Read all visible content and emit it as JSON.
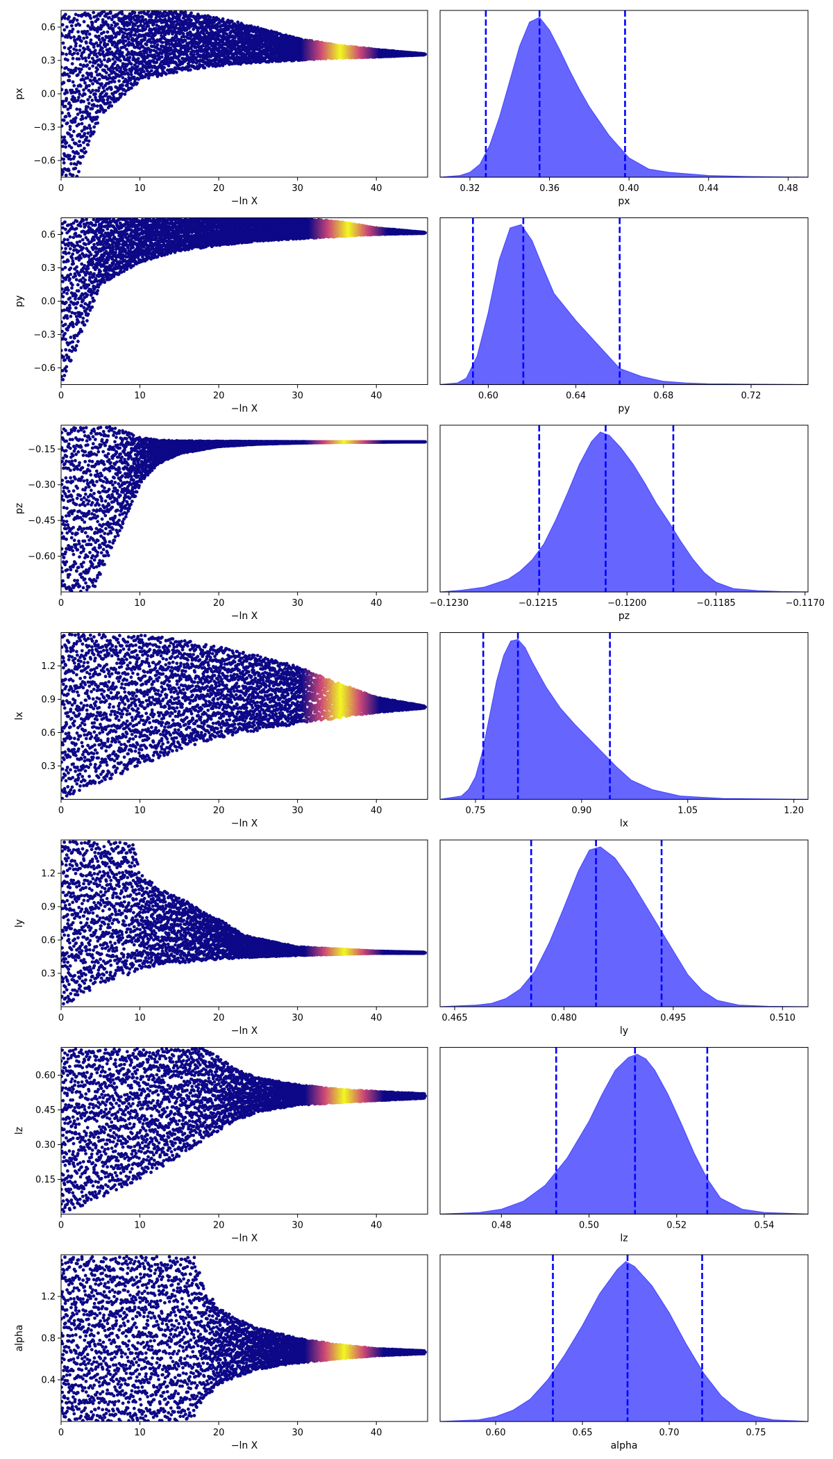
{
  "colors": {
    "scatter_low": "#0d0887",
    "scatter_mid": "#cc4778",
    "scatter_high": "#f0f921",
    "kde_fill": "#6666ff",
    "kde_edge": "#4b4bff",
    "quantile_line": "#0000ff"
  },
  "chart_data": [
    {
      "type": "scatter",
      "panel": "trace-px",
      "ylabel": "px",
      "xlabel": "−ln X",
      "xlim": [
        0,
        46.5
      ],
      "ylim": [
        -0.75,
        0.75
      ],
      "xticks": [
        0,
        10,
        20,
        30,
        40
      ],
      "xtick_labels": [
        "0",
        "10",
        "20",
        "30",
        "40"
      ],
      "yticks": [
        -0.6,
        -0.3,
        0.0,
        0.3,
        0.6
      ],
      "ytick_labels": [
        "−0.6",
        "−0.3",
        "0.0",
        "0.3",
        "0.6"
      ],
      "envelope": {
        "x": [
          0,
          2,
          5,
          10,
          15,
          20,
          25,
          30,
          35,
          40,
          46
        ],
        "upper": [
          0.75,
          0.75,
          0.75,
          0.75,
          0.75,
          0.69,
          0.6,
          0.5,
          0.44,
          0.4,
          0.36
        ],
        "lower": [
          -0.75,
          -0.75,
          -0.2,
          0.12,
          0.2,
          0.25,
          0.28,
          0.3,
          0.32,
          0.33,
          0.35
        ]
      },
      "peak_x": 35.5
    },
    {
      "type": "area",
      "panel": "posterior-px",
      "xlabel": "px",
      "xlim": [
        0.305,
        0.49
      ],
      "xticks": [
        0.32,
        0.36,
        0.4,
        0.44,
        0.48
      ],
      "xtick_labels": [
        "0.32",
        "0.36",
        "0.40",
        "0.44",
        "0.48"
      ],
      "x": [
        0.305,
        0.315,
        0.32,
        0.325,
        0.33,
        0.335,
        0.34,
        0.345,
        0.35,
        0.355,
        0.36,
        0.365,
        0.37,
        0.375,
        0.38,
        0.39,
        0.4,
        0.41,
        0.42,
        0.44,
        0.46,
        0.49
      ],
      "density": [
        0.0,
        0.01,
        0.03,
        0.08,
        0.2,
        0.38,
        0.6,
        0.82,
        0.97,
        1.0,
        0.92,
        0.8,
        0.67,
        0.55,
        0.44,
        0.26,
        0.12,
        0.05,
        0.03,
        0.01,
        0.004,
        0.0
      ],
      "quantiles": [
        0.328,
        0.355,
        0.398
      ]
    },
    {
      "type": "scatter",
      "panel": "trace-py",
      "ylabel": "py",
      "xlabel": "−ln X",
      "xlim": [
        0,
        46.5
      ],
      "ylim": [
        -0.75,
        0.75
      ],
      "xticks": [
        0,
        10,
        20,
        30,
        40
      ],
      "xtick_labels": [
        "0",
        "10",
        "20",
        "30",
        "40"
      ],
      "yticks": [
        -0.6,
        -0.3,
        0.0,
        0.3,
        0.6
      ],
      "ytick_labels": [
        "−0.6",
        "−0.3",
        "0.0",
        "0.3",
        "0.6"
      ],
      "envelope": {
        "x": [
          0,
          2,
          5,
          10,
          15,
          20,
          25,
          30,
          35,
          40,
          46
        ],
        "upper": [
          0.75,
          0.75,
          0.75,
          0.75,
          0.75,
          0.75,
          0.75,
          0.75,
          0.72,
          0.66,
          0.62
        ],
        "lower": [
          -0.75,
          -0.4,
          0.15,
          0.35,
          0.45,
          0.5,
          0.54,
          0.56,
          0.58,
          0.6,
          0.61
        ]
      },
      "peak_x": 36.5
    },
    {
      "type": "area",
      "panel": "posterior-py",
      "xlabel": "py",
      "xlim": [
        0.578,
        0.746
      ],
      "xticks": [
        0.6,
        0.64,
        0.68,
        0.72
      ],
      "xtick_labels": [
        "0.60",
        "0.64",
        "0.68",
        "0.72"
      ],
      "x": [
        0.578,
        0.586,
        0.59,
        0.595,
        0.6,
        0.605,
        0.61,
        0.615,
        0.62,
        0.625,
        0.63,
        0.64,
        0.65,
        0.66,
        0.67,
        0.68,
        0.69,
        0.7,
        0.72,
        0.746
      ],
      "density": [
        0.0,
        0.01,
        0.04,
        0.18,
        0.45,
        0.78,
        0.98,
        1.0,
        0.9,
        0.73,
        0.57,
        0.4,
        0.25,
        0.1,
        0.05,
        0.02,
        0.01,
        0.005,
        0.002,
        0.0
      ],
      "quantiles": [
        0.593,
        0.616,
        0.66
      ]
    },
    {
      "type": "scatter",
      "panel": "trace-pz",
      "ylabel": "pz",
      "xlabel": "−ln X",
      "xlim": [
        0,
        46.5
      ],
      "ylim": [
        -0.75,
        -0.05
      ],
      "xticks": [
        0,
        10,
        20,
        30,
        40
      ],
      "xtick_labels": [
        "0",
        "10",
        "20",
        "30",
        "40"
      ],
      "yticks": [
        -0.6,
        -0.45,
        -0.3,
        -0.15
      ],
      "ytick_labels": [
        "−0.60",
        "−0.45",
        "−0.30",
        "−0.15"
      ],
      "envelope": {
        "x": [
          0,
          2,
          4,
          6,
          8,
          10,
          12,
          15,
          20,
          25,
          30,
          35,
          40,
          46
        ],
        "upper": [
          -0.05,
          -0.05,
          -0.05,
          -0.05,
          -0.07,
          -0.1,
          -0.11,
          -0.115,
          -0.117,
          -0.118,
          -0.119,
          -0.12,
          -0.12,
          -0.12
        ],
        "lower": [
          -0.75,
          -0.75,
          -0.75,
          -0.6,
          -0.45,
          -0.3,
          -0.22,
          -0.17,
          -0.14,
          -0.13,
          -0.125,
          -0.122,
          -0.121,
          -0.12
        ]
      },
      "peak_x": 36
    },
    {
      "type": "area",
      "panel": "posterior-pz",
      "xlabel": "pz",
      "xlim": [
        -0.12315,
        -0.11695
      ],
      "xticks": [
        -0.123,
        -0.1215,
        -0.12,
        -0.1185,
        -0.117
      ],
      "xtick_labels": [
        "−0.1230",
        "−0.1215",
        "−0.1200",
        "−0.1185",
        "−0.1170"
      ],
      "x": [
        -0.12315,
        -0.1228,
        -0.1224,
        -0.122,
        -0.1218,
        -0.1216,
        -0.1214,
        -0.1212,
        -0.121,
        -0.1208,
        -0.1206,
        -0.12045,
        -0.1203,
        -0.1201,
        -0.1199,
        -0.1197,
        -0.1195,
        -0.1193,
        -0.1191,
        -0.1189,
        -0.1187,
        -0.1185,
        -0.1182,
        -0.1178,
        -0.1174,
        -0.11695
      ],
      "density": [
        0.0,
        0.01,
        0.03,
        0.08,
        0.13,
        0.2,
        0.3,
        0.45,
        0.62,
        0.8,
        0.94,
        1.0,
        0.98,
        0.9,
        0.8,
        0.68,
        0.55,
        0.44,
        0.32,
        0.21,
        0.12,
        0.06,
        0.02,
        0.008,
        0.002,
        0.0
      ],
      "quantiles": [
        -0.12148,
        -0.12036,
        -0.11922
      ]
    },
    {
      "type": "scatter",
      "panel": "trace-lx",
      "ylabel": "lx",
      "xlabel": "−ln X",
      "xlim": [
        0,
        46.5
      ],
      "ylim": [
        0.0,
        1.5
      ],
      "xticks": [
        0,
        10,
        20,
        30,
        40
      ],
      "xtick_labels": [
        "0",
        "10",
        "20",
        "30",
        "40"
      ],
      "yticks": [
        0.3,
        0.6,
        0.9,
        1.2
      ],
      "ytick_labels": [
        "0.3",
        "0.6",
        "0.9",
        "1.2"
      ],
      "envelope": {
        "x": [
          0,
          5,
          10,
          15,
          20,
          25,
          30,
          35,
          40,
          46
        ],
        "upper": [
          1.5,
          1.5,
          1.5,
          1.45,
          1.38,
          1.3,
          1.2,
          1.05,
          0.92,
          0.84
        ],
        "lower": [
          0.0,
          0.15,
          0.3,
          0.45,
          0.55,
          0.62,
          0.68,
          0.73,
          0.78,
          0.82
        ]
      },
      "peak_x": 35.5
    },
    {
      "type": "area",
      "panel": "posterior-lx",
      "xlabel": "lx",
      "xlim": [
        0.7,
        1.22
      ],
      "xticks": [
        0.75,
        0.9,
        1.05,
        1.2
      ],
      "xtick_labels": [
        "0.75",
        "0.90",
        "1.05",
        "1.20"
      ],
      "x": [
        0.7,
        0.73,
        0.74,
        0.75,
        0.76,
        0.77,
        0.78,
        0.79,
        0.8,
        0.81,
        0.82,
        0.83,
        0.85,
        0.87,
        0.89,
        0.91,
        0.93,
        0.95,
        0.97,
        1.0,
        1.04,
        1.1,
        1.22
      ],
      "density": [
        0.0,
        0.02,
        0.06,
        0.14,
        0.3,
        0.52,
        0.74,
        0.9,
        0.99,
        1.0,
        0.95,
        0.86,
        0.7,
        0.57,
        0.47,
        0.38,
        0.29,
        0.2,
        0.12,
        0.06,
        0.02,
        0.005,
        0.0
      ],
      "quantiles": [
        0.761,
        0.81,
        0.94
      ]
    },
    {
      "type": "scatter",
      "panel": "trace-ly",
      "ylabel": "ly",
      "xlabel": "−ln X",
      "xlim": [
        0,
        46.5
      ],
      "ylim": [
        0.0,
        1.5
      ],
      "xticks": [
        0,
        10,
        20,
        30,
        40
      ],
      "xtick_labels": [
        "0",
        "10",
        "20",
        "30",
        "40"
      ],
      "yticks": [
        0.3,
        0.6,
        0.9,
        1.2
      ],
      "ytick_labels": [
        "0.3",
        "0.6",
        "0.9",
        "1.2"
      ],
      "envelope": {
        "x": [
          0,
          5,
          9,
          10,
          13,
          16,
          19,
          21,
          23,
          26,
          30,
          35,
          40,
          46
        ],
        "upper": [
          1.5,
          1.5,
          1.5,
          1.2,
          1.05,
          0.95,
          0.82,
          0.75,
          0.65,
          0.6,
          0.54,
          0.52,
          0.5,
          0.49
        ],
        "lower": [
          0.0,
          0.2,
          0.3,
          0.34,
          0.38,
          0.4,
          0.42,
          0.43,
          0.44,
          0.45,
          0.46,
          0.47,
          0.48,
          0.48
        ]
      },
      "peak_x": 36
    },
    {
      "type": "area",
      "panel": "posterior-ly",
      "xlabel": "ly",
      "xlim": [
        0.463,
        0.5135
      ],
      "xticks": [
        0.465,
        0.48,
        0.495,
        0.51
      ],
      "xtick_labels": [
        "0.465",
        "0.480",
        "0.495",
        "0.510"
      ],
      "x": [
        0.463,
        0.468,
        0.47,
        0.472,
        0.474,
        0.476,
        0.478,
        0.48,
        0.482,
        0.4835,
        0.485,
        0.487,
        0.489,
        0.491,
        0.493,
        0.495,
        0.497,
        0.499,
        0.501,
        0.504,
        0.508,
        0.5135
      ],
      "density": [
        0.0,
        0.01,
        0.02,
        0.05,
        0.11,
        0.22,
        0.4,
        0.62,
        0.85,
        0.98,
        1.0,
        0.93,
        0.8,
        0.65,
        0.5,
        0.35,
        0.2,
        0.1,
        0.04,
        0.01,
        0.002,
        0.0
      ],
      "quantiles": [
        0.4755,
        0.4844,
        0.4934
      ]
    },
    {
      "type": "scatter",
      "panel": "trace-lz",
      "ylabel": "lz",
      "xlabel": "−ln X",
      "xlim": [
        0,
        46.5
      ],
      "ylim": [
        0.0,
        0.72
      ],
      "xticks": [
        0,
        10,
        20,
        30,
        40
      ],
      "xtick_labels": [
        "0",
        "10",
        "20",
        "30",
        "40"
      ],
      "yticks": [
        0.15,
        0.3,
        0.45,
        0.6
      ],
      "ytick_labels": [
        "0.15",
        "0.30",
        "0.45",
        "0.60"
      ],
      "envelope": {
        "x": [
          0,
          5,
          10,
          15,
          18,
          20,
          22,
          25,
          30,
          35,
          40,
          46
        ],
        "upper": [
          0.72,
          0.72,
          0.72,
          0.72,
          0.72,
          0.68,
          0.63,
          0.59,
          0.56,
          0.54,
          0.53,
          0.52
        ],
        "lower": [
          0.0,
          0.07,
          0.15,
          0.25,
          0.32,
          0.36,
          0.4,
          0.44,
          0.47,
          0.48,
          0.49,
          0.5
        ]
      },
      "peak_x": 36
    },
    {
      "type": "area",
      "panel": "posterior-lz",
      "xlabel": "lz",
      "xlim": [
        0.466,
        0.55
      ],
      "xticks": [
        0.48,
        0.5,
        0.52,
        0.54
      ],
      "xtick_labels": [
        "0.48",
        "0.50",
        "0.52",
        "0.54"
      ],
      "x": [
        0.466,
        0.475,
        0.48,
        0.485,
        0.49,
        0.495,
        0.5,
        0.503,
        0.506,
        0.509,
        0.511,
        0.513,
        0.515,
        0.518,
        0.521,
        0.524,
        0.527,
        0.53,
        0.535,
        0.54,
        0.55
      ],
      "density": [
        0.0,
        0.01,
        0.03,
        0.08,
        0.18,
        0.35,
        0.58,
        0.75,
        0.9,
        0.98,
        1.0,
        0.97,
        0.9,
        0.75,
        0.57,
        0.38,
        0.22,
        0.1,
        0.03,
        0.01,
        0.0
      ],
      "quantiles": [
        0.4925,
        0.5105,
        0.527
      ]
    },
    {
      "type": "scatter",
      "panel": "trace-alpha",
      "ylabel": "alpha",
      "xlabel": "−ln X",
      "xlim": [
        0,
        46.5
      ],
      "ylim": [
        0.0,
        1.6
      ],
      "xticks": [
        0,
        10,
        20,
        30,
        40
      ],
      "xtick_labels": [
        "0",
        "10",
        "20",
        "30",
        "40"
      ],
      "yticks": [
        0.4,
        0.8,
        1.2
      ],
      "ytick_labels": [
        "0.4",
        "0.8",
        "1.2"
      ],
      "envelope": {
        "x": [
          0,
          5,
          10,
          15,
          17,
          18,
          20,
          22,
          25,
          30,
          35,
          40,
          46
        ],
        "upper": [
          1.6,
          1.6,
          1.6,
          1.6,
          1.6,
          1.3,
          1.1,
          1.0,
          0.9,
          0.8,
          0.74,
          0.7,
          0.68
        ],
        "lower": [
          0.0,
          0.0,
          0.0,
          0.0,
          0.05,
          0.2,
          0.35,
          0.42,
          0.5,
          0.56,
          0.6,
          0.63,
          0.65
        ]
      },
      "peak_x": 36
    },
    {
      "type": "area",
      "panel": "posterior-alpha",
      "xlabel": "alpha",
      "xlim": [
        0.568,
        0.78
      ],
      "xticks": [
        0.6,
        0.65,
        0.7,
        0.75
      ],
      "xtick_labels": [
        "0.60",
        "0.65",
        "0.70",
        "0.75"
      ],
      "x": [
        0.568,
        0.59,
        0.6,
        0.61,
        0.62,
        0.63,
        0.64,
        0.65,
        0.66,
        0.67,
        0.675,
        0.68,
        0.69,
        0.7,
        0.71,
        0.72,
        0.73,
        0.74,
        0.75,
        0.76,
        0.78
      ],
      "density": [
        0.0,
        0.01,
        0.03,
        0.07,
        0.14,
        0.26,
        0.42,
        0.6,
        0.8,
        0.95,
        1.0,
        0.97,
        0.85,
        0.68,
        0.48,
        0.3,
        0.16,
        0.07,
        0.03,
        0.01,
        0.0
      ],
      "quantiles": [
        0.633,
        0.676,
        0.719
      ]
    }
  ]
}
